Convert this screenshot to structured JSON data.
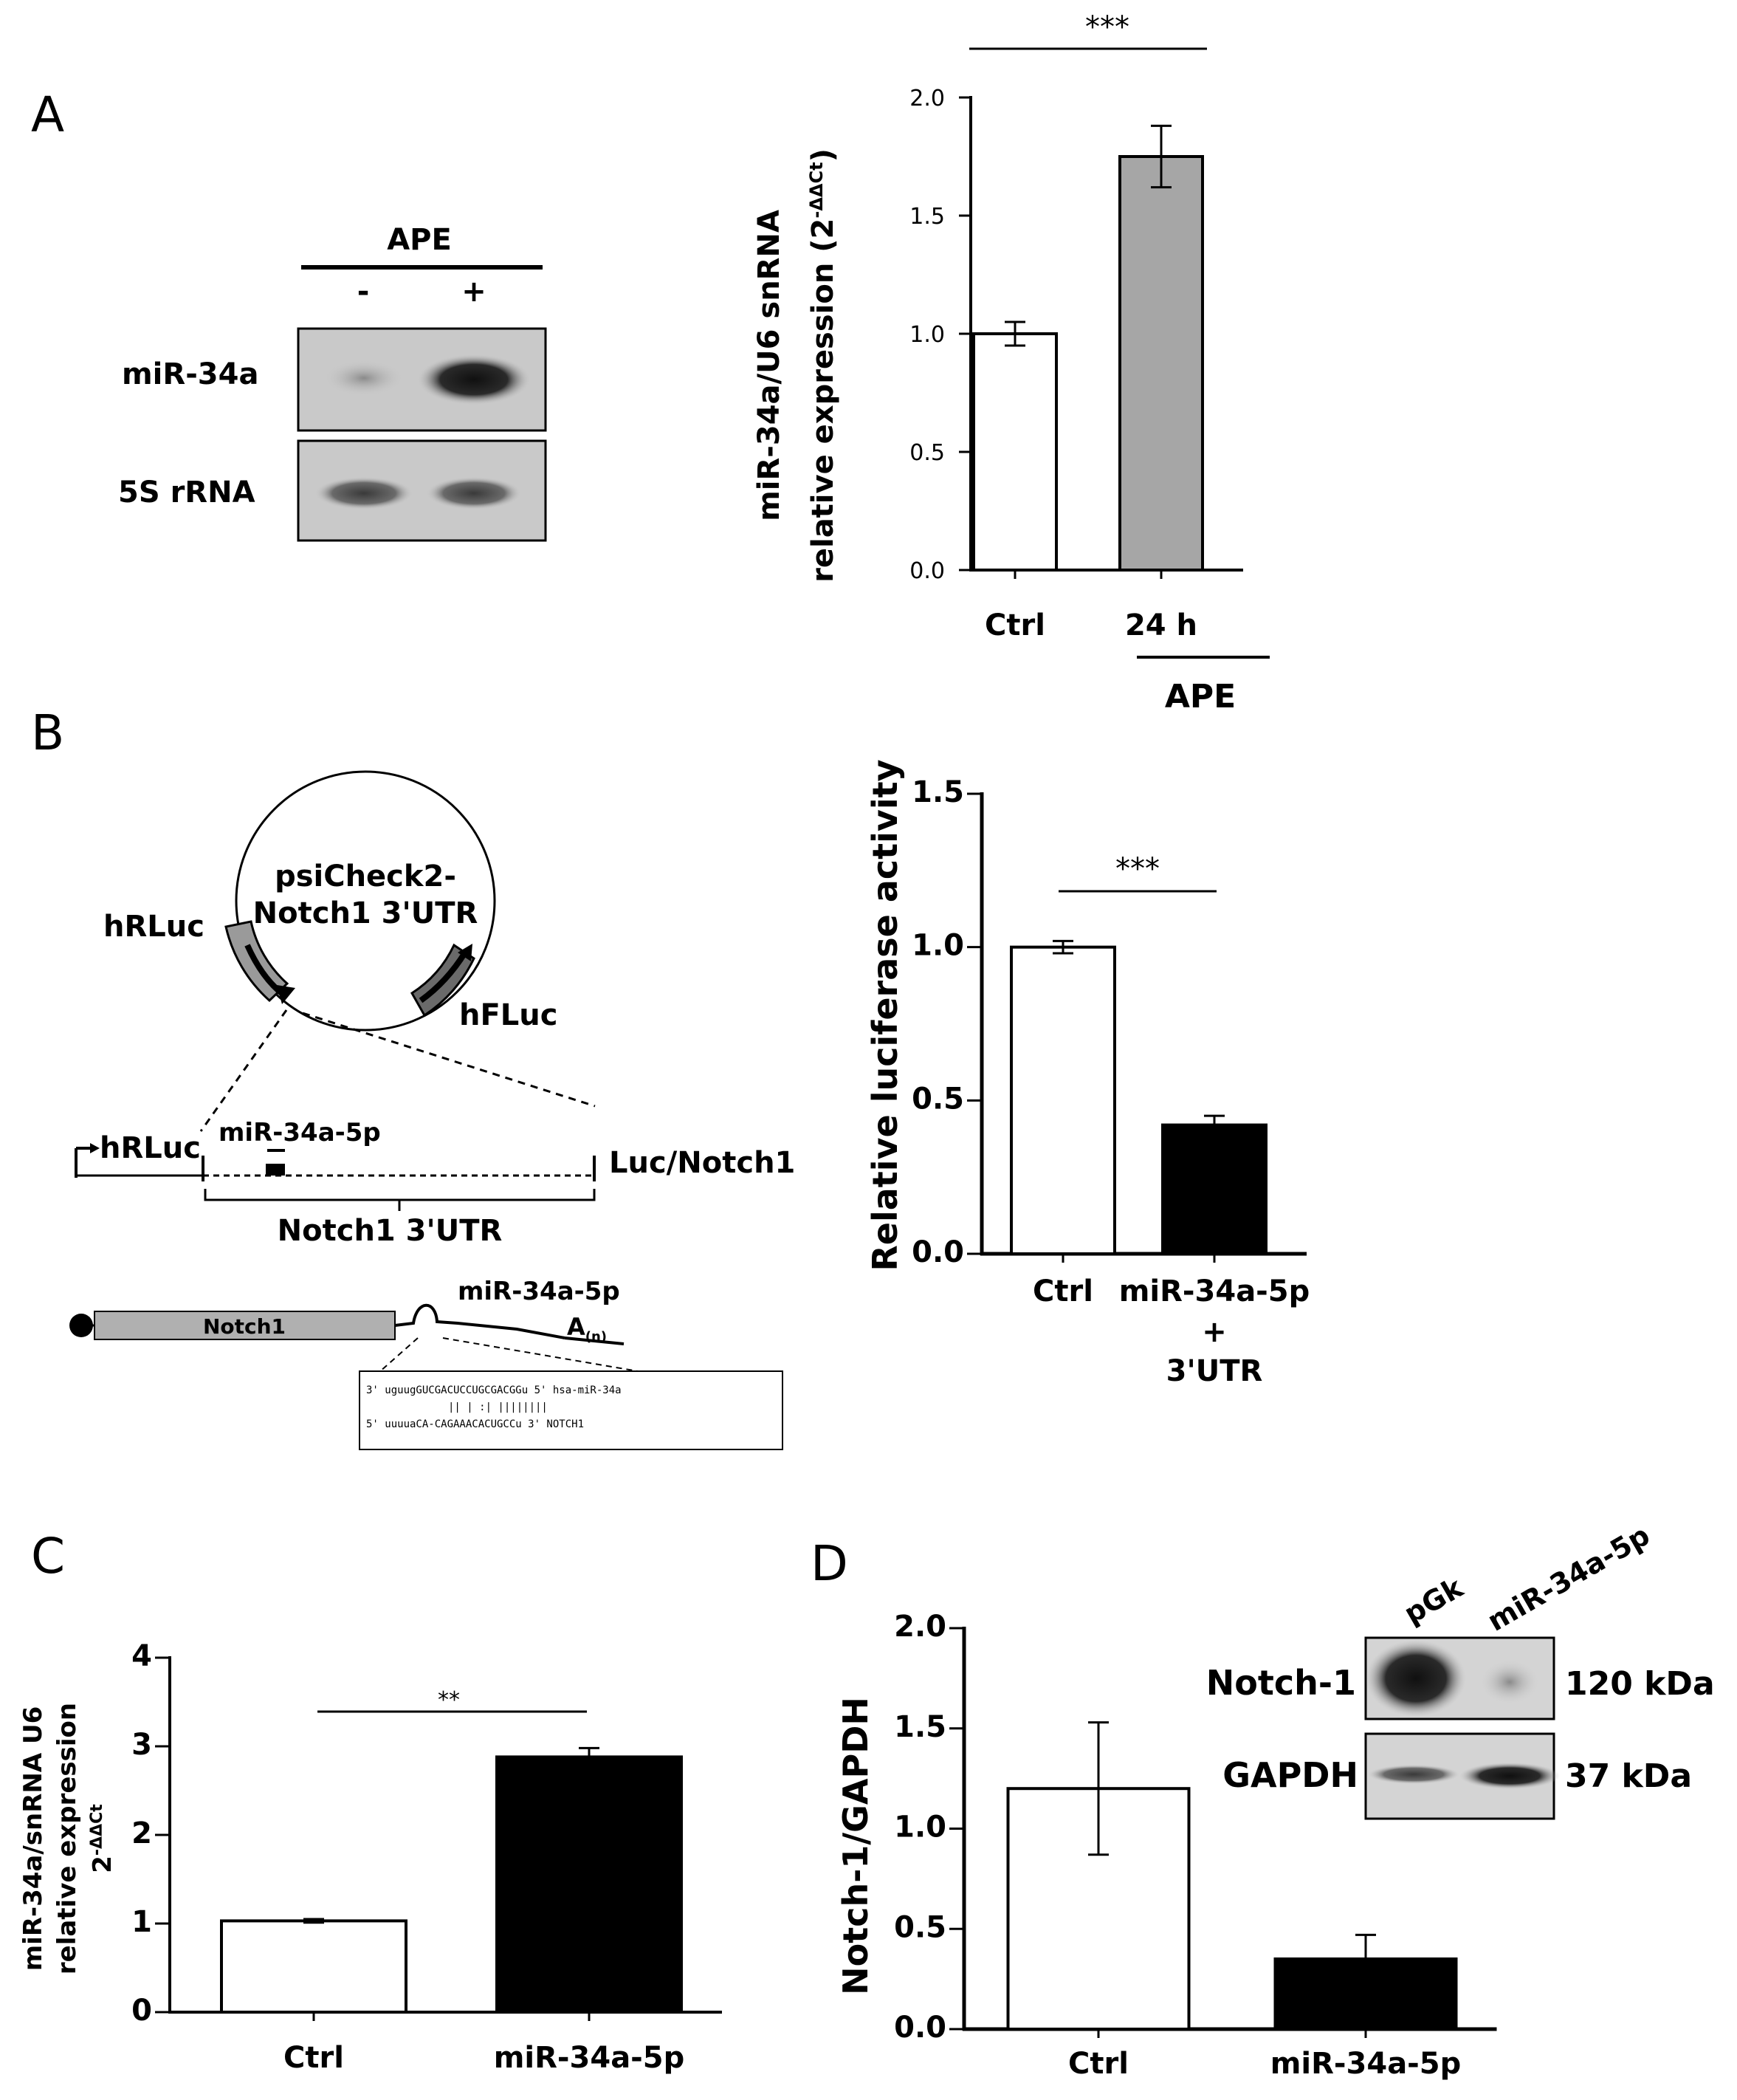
{
  "panels": {
    "A": {
      "letter": "A",
      "blot": {
        "treatment": "APE",
        "lane_minus": "-",
        "lane_plus": "+",
        "row1": "miR-34a",
        "row2": "5S rRNA"
      }
    },
    "B": {
      "letter": "B",
      "plasmid": {
        "name_line1": "psiCheck2-",
        "name_line2": "Notch1 3'UTR",
        "left_gene": "hRLuc",
        "right_gene": "hFLuc"
      },
      "construct": {
        "left": "hRLuc",
        "site": "miR-34a-5p",
        "right": "Luc/Notch1",
        "brace": "Notch1 3'UTR"
      },
      "transcript": {
        "gene": "Notch1",
        "site": "miR-34a-5p",
        "polyA": "A",
        "polyA_sub": "(n)",
        "seq1": "3' uguugGUCGACUCCUGCGACGGu 5' hsa-miR-34a",
        "seq2": "|| | :| ||||||||",
        "seq3": "5' uuuuaCA-CAGAAACACUGCCu 3' NOTCH1"
      }
    },
    "C": {
      "letter": "C"
    },
    "D": {
      "letter": "D",
      "blot": {
        "lane1": "pGk",
        "lane2": "miR-34a-5p",
        "row1": "Notch-1",
        "row2": "GAPDH",
        "size1": "120 kDa",
        "size2": "37 kDa"
      }
    }
  },
  "chart_data": [
    {
      "panel": "A",
      "type": "bar",
      "categories": [
        "Ctrl",
        "24 h"
      ],
      "group_label": "APE",
      "values": [
        1.0,
        1.75
      ],
      "errors": [
        0.05,
        0.13
      ],
      "colors": [
        "#ffffff",
        "#a6a6a6"
      ],
      "ylabel_line1": "miR-34a/U6 snRNA",
      "ylabel_line2": "relative expression (2",
      "ylabel_sup": "-ΔΔCt",
      "ylabel_close": ")",
      "ylim": [
        0,
        2.0
      ],
      "yticks": [
        "0.0",
        "0.5",
        "1.0",
        "1.5",
        "2.0"
      ],
      "significance": "***"
    },
    {
      "panel": "B",
      "type": "bar",
      "categories": [
        "Ctrl",
        "miR-34a-5p"
      ],
      "category_sub": [
        "",
        "+"
      ],
      "category_sub2": [
        "",
        "3'UTR"
      ],
      "values": [
        1.0,
        0.42
      ],
      "errors": [
        0.02,
        0.03
      ],
      "colors": [
        "#ffffff",
        "#000000"
      ],
      "ylabel": "Relative luciferase activity",
      "ylim": [
        0,
        1.5
      ],
      "yticks": [
        "0.0",
        "0.5",
        "1.0",
        "1.5"
      ],
      "significance": "***"
    },
    {
      "panel": "C",
      "type": "bar",
      "categories": [
        "Ctrl",
        "miR-34a-5p"
      ],
      "values": [
        1.03,
        2.88
      ],
      "errors": [
        0.02,
        0.1
      ],
      "colors": [
        "#ffffff",
        "#000000"
      ],
      "ylabel_line1": "miR-34a/snRNA U6",
      "ylabel_line2": "relative expression",
      "ylabel_line3": "2",
      "ylabel_sup": "-ΔΔCt",
      "ylim": [
        0,
        4
      ],
      "yticks": [
        "0",
        "1",
        "2",
        "3",
        "4"
      ],
      "significance": "**"
    },
    {
      "panel": "D",
      "type": "bar",
      "categories": [
        "Ctrl",
        "miR-34a-5p"
      ],
      "values": [
        1.2,
        0.35
      ],
      "errors": [
        0.33,
        0.12
      ],
      "colors": [
        "#ffffff",
        "#000000"
      ],
      "ylabel": "Notch-1/GAPDH",
      "ylim": [
        0,
        2.0
      ],
      "yticks": [
        "0.0",
        "0.5",
        "1.0",
        "1.5",
        "2.0"
      ]
    }
  ]
}
